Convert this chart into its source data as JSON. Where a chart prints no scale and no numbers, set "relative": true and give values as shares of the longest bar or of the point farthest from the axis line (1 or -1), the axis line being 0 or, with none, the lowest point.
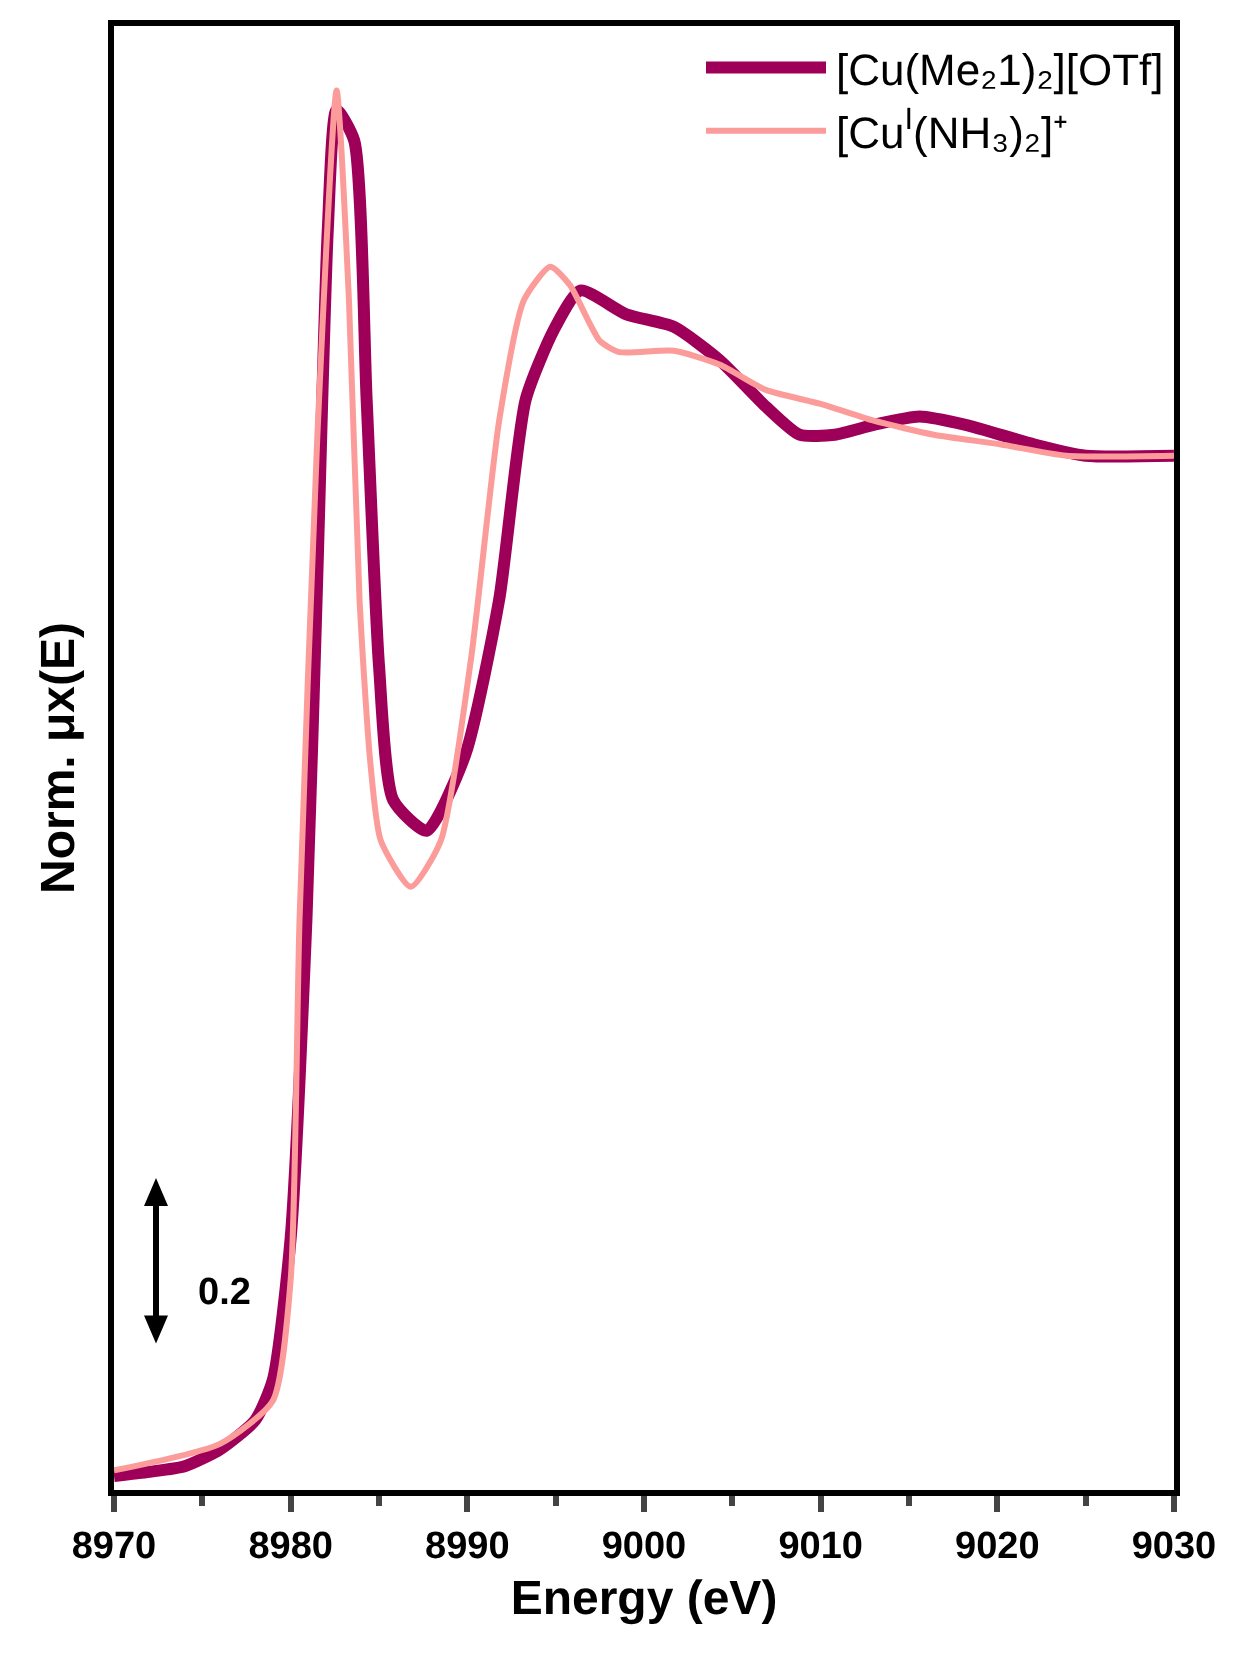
{
  "chart_data": {
    "type": "line",
    "relative": true,
    "xlabel": "Energy (eV)",
    "ylabel": "Norm. μx(E)",
    "xlim": [
      8970,
      9030
    ],
    "xticks": [
      8970,
      8980,
      8990,
      9000,
      9010,
      9020,
      9030
    ],
    "grid": false,
    "legend": "top right",
    "marker": "none",
    "line_style": "solid",
    "annotations": [
      "0.2"
    ],
    "series": [
      {
        "name": "[Cu(Me₂1)₂][OTf]",
        "color": "#9e0059",
        "x": [
          8970,
          8972,
          8974,
          8976,
          8978,
          8979,
          8980,
          8980.9,
          8981.5,
          8982.1,
          8982.6,
          8983.6,
          8984.3,
          8985,
          8985.8,
          8987.7,
          8989.9,
          8991.8,
          8993.3,
          8994.9,
          8996.4,
          8999,
          9001.7,
          9004.3,
          9006.9,
          9008.8,
          9010.8,
          9013,
          9015.6,
          9018.2,
          9022.1,
          9025,
          9030
        ],
        "values": [
          0.01,
          0.013,
          0.017,
          0.029,
          0.05,
          0.079,
          0.18,
          0.41,
          0.65,
          0.9,
          0.986,
          0.964,
          0.779,
          0.589,
          0.493,
          0.471,
          0.526,
          0.636,
          0.779,
          0.829,
          0.857,
          0.84,
          0.831,
          0.807,
          0.774,
          0.754,
          0.754,
          0.761,
          0.767,
          0.761,
          0.747,
          0.739,
          0.739
        ]
      },
      {
        "name": "[Cu$^{I}$(NH₃)₂]⁺",
        "color": "#fc9c9a",
        "x": [
          8970,
          8976,
          8979,
          8980,
          8980.5,
          8981.5,
          8982.6,
          8983.3,
          8983.9,
          8984.5,
          8985.1,
          8986.8,
          8988.5,
          8990.2,
          8991.8,
          8993.2,
          8994.7,
          8995.8,
          8997.5,
          8998.6,
          9001.7,
          9004.3,
          9006.9,
          9010,
          9013,
          9016.4,
          9020.2,
          9023.9,
          9030
        ],
        "values": [
          0.014,
          0.033,
          0.064,
          0.15,
          0.407,
          0.75,
          1,
          0.85,
          0.636,
          0.521,
          0.464,
          0.431,
          0.464,
          0.593,
          0.764,
          0.85,
          0.874,
          0.861,
          0.821,
          0.813,
          0.814,
          0.804,
          0.786,
          0.776,
          0.764,
          0.754,
          0.747,
          0.739,
          0.739
        ]
      }
    ]
  }
}
